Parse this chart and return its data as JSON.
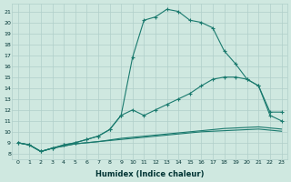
{
  "xlabel": "Humidex (Indice chaleur)",
  "bg_color": "#cfe8e0",
  "grid_color": "#b0cfca",
  "line_color": "#1a7a6e",
  "xlim": [
    -0.5,
    23.5
  ],
  "ylim": [
    7.5,
    21.7
  ],
  "xticks": [
    0,
    1,
    2,
    3,
    4,
    5,
    6,
    7,
    8,
    9,
    10,
    11,
    12,
    13,
    14,
    15,
    16,
    17,
    18,
    19,
    20,
    21,
    22,
    23
  ],
  "yticks": [
    8,
    9,
    10,
    11,
    12,
    13,
    14,
    15,
    16,
    17,
    18,
    19,
    20,
    21
  ],
  "line1_x": [
    0,
    1,
    2,
    3,
    4,
    5,
    6,
    7,
    8,
    9,
    10,
    11,
    12,
    13,
    14,
    15,
    16,
    17,
    18,
    19,
    20,
    21,
    22,
    23
  ],
  "line1_y": [
    9.0,
    8.8,
    8.2,
    8.5,
    8.8,
    9.0,
    9.3,
    9.6,
    10.2,
    11.5,
    16.8,
    20.2,
    20.5,
    21.2,
    21.0,
    20.2,
    20.0,
    19.5,
    17.4,
    16.2,
    14.8,
    14.2,
    11.8,
    11.8
  ],
  "line2_x": [
    0,
    1,
    2,
    3,
    4,
    5,
    6,
    7,
    8,
    9,
    10,
    11,
    12,
    13,
    14,
    15,
    16,
    17,
    18,
    19,
    20,
    21,
    22,
    23
  ],
  "line2_y": [
    9.0,
    8.8,
    8.2,
    8.5,
    8.8,
    9.0,
    9.3,
    9.6,
    10.2,
    11.5,
    12.0,
    11.5,
    12.0,
    12.5,
    13.0,
    13.5,
    14.2,
    14.8,
    15.0,
    15.0,
    14.8,
    14.2,
    11.5,
    11.0
  ],
  "line3_x": [
    0,
    1,
    2,
    3,
    4,
    5,
    6,
    7,
    8,
    9,
    10,
    11,
    12,
    13,
    14,
    15,
    16,
    17,
    18,
    19,
    20,
    21,
    22,
    23
  ],
  "line3_y": [
    9.0,
    8.8,
    8.2,
    8.5,
    8.7,
    8.9,
    9.0,
    9.1,
    9.25,
    9.4,
    9.5,
    9.6,
    9.7,
    9.8,
    9.9,
    10.0,
    10.1,
    10.2,
    10.3,
    10.35,
    10.4,
    10.45,
    10.35,
    10.25
  ],
  "line4_x": [
    0,
    1,
    2,
    3,
    4,
    5,
    6,
    7,
    8,
    9,
    10,
    11,
    12,
    13,
    14,
    15,
    16,
    17,
    18,
    19,
    20,
    21,
    22,
    23
  ],
  "line4_y": [
    9.0,
    8.8,
    8.2,
    8.5,
    8.7,
    8.9,
    9.0,
    9.1,
    9.2,
    9.3,
    9.4,
    9.5,
    9.6,
    9.7,
    9.8,
    9.9,
    10.0,
    10.05,
    10.1,
    10.15,
    10.2,
    10.25,
    10.15,
    10.05
  ]
}
